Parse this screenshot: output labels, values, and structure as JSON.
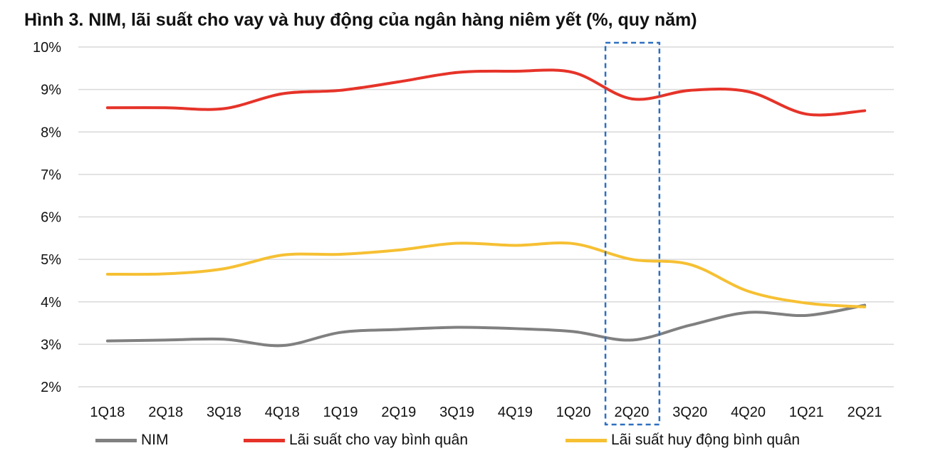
{
  "chart_data": {
    "type": "line",
    "title": "Hình 3. NIM, lãi suất cho vay và huy động của ngân hàng niêm yết (%, quy năm)",
    "categories": [
      "1Q18",
      "2Q18",
      "3Q18",
      "4Q18",
      "1Q19",
      "2Q19",
      "3Q19",
      "4Q19",
      "1Q20",
      "2Q20",
      "3Q20",
      "4Q20",
      "1Q21",
      "2Q21"
    ],
    "ylim": [
      2,
      10
    ],
    "yticks": [
      "2%",
      "3%",
      "4%",
      "5%",
      "6%",
      "7%",
      "8%",
      "9%",
      "10%"
    ],
    "grid": true,
    "legend_position": "bottom",
    "highlight_category": "2Q20",
    "series": [
      {
        "name": "NIM",
        "color": "#808080",
        "values": [
          3.08,
          3.1,
          3.12,
          2.97,
          3.28,
          3.35,
          3.4,
          3.37,
          3.3,
          3.1,
          3.45,
          3.75,
          3.68,
          3.92
        ]
      },
      {
        "name": "Lãi suất cho vay bình quân",
        "color": "#e63329",
        "values": [
          8.57,
          8.57,
          8.55,
          8.9,
          8.98,
          9.18,
          9.4,
          9.43,
          9.4,
          8.78,
          8.98,
          8.95,
          8.42,
          8.5
        ]
      },
      {
        "name": "Lãi suất huy động bình quân",
        "color": "#f6c033",
        "values": [
          4.65,
          4.66,
          4.78,
          5.1,
          5.12,
          5.22,
          5.38,
          5.33,
          5.37,
          5.0,
          4.88,
          4.25,
          3.97,
          3.88
        ]
      }
    ]
  }
}
